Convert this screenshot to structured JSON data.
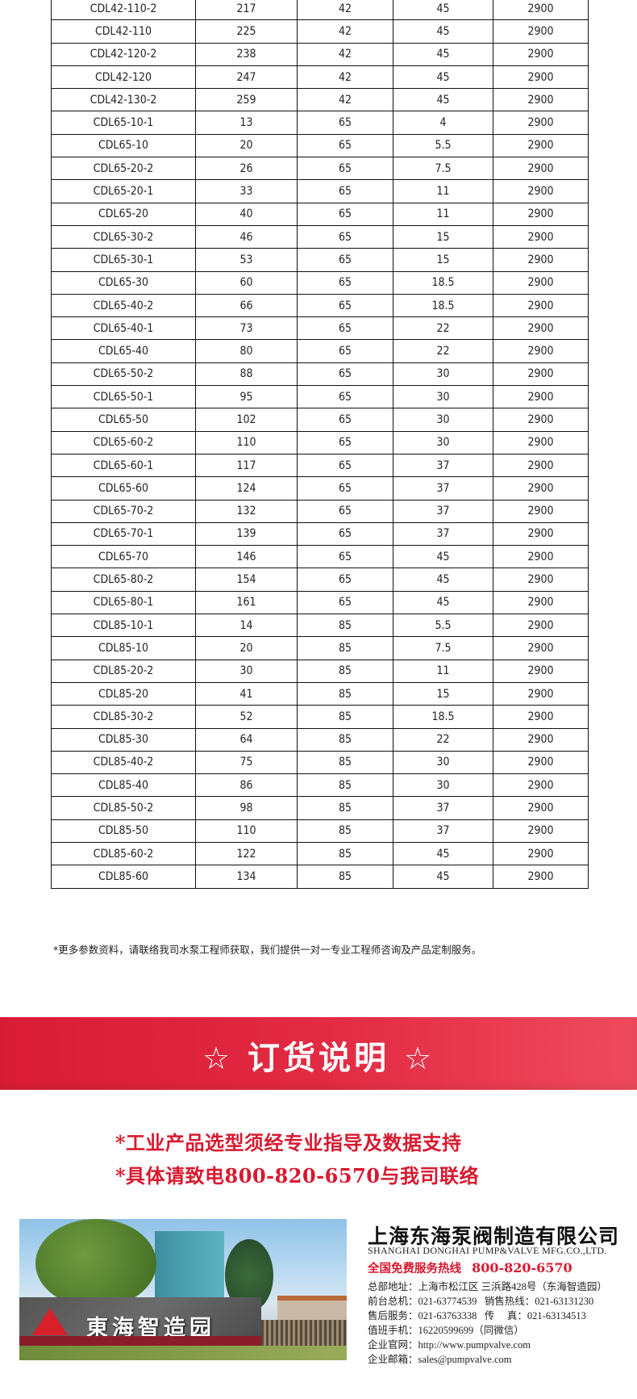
{
  "table": {
    "rows": [
      [
        "CDL42-110-2",
        "217",
        "42",
        "45",
        "2900"
      ],
      [
        "CDL42-110",
        "225",
        "42",
        "45",
        "2900"
      ],
      [
        "CDL42-120-2",
        "238",
        "42",
        "45",
        "2900"
      ],
      [
        "CDL42-120",
        "247",
        "42",
        "45",
        "2900"
      ],
      [
        "CDL42-130-2",
        "259",
        "42",
        "45",
        "2900"
      ],
      [
        "CDL65-10-1",
        "13",
        "65",
        "4",
        "2900"
      ],
      [
        "CDL65-10",
        "20",
        "65",
        "5.5",
        "2900"
      ],
      [
        "CDL65-20-2",
        "26",
        "65",
        "7.5",
        "2900"
      ],
      [
        "CDL65-20-1",
        "33",
        "65",
        "11",
        "2900"
      ],
      [
        "CDL65-20",
        "40",
        "65",
        "11",
        "2900"
      ],
      [
        "CDL65-30-2",
        "46",
        "65",
        "15",
        "2900"
      ],
      [
        "CDL65-30-1",
        "53",
        "65",
        "15",
        "2900"
      ],
      [
        "CDL65-30",
        "60",
        "65",
        "18.5",
        "2900"
      ],
      [
        "CDL65-40-2",
        "66",
        "65",
        "18.5",
        "2900"
      ],
      [
        "CDL65-40-1",
        "73",
        "65",
        "22",
        "2900"
      ],
      [
        "CDL65-40",
        "80",
        "65",
        "22",
        "2900"
      ],
      [
        "CDL65-50-2",
        "88",
        "65",
        "30",
        "2900"
      ],
      [
        "CDL65-50-1",
        "95",
        "65",
        "30",
        "2900"
      ],
      [
        "CDL65-50",
        "102",
        "65",
        "30",
        "2900"
      ],
      [
        "CDL65-60-2",
        "110",
        "65",
        "30",
        "2900"
      ],
      [
        "CDL65-60-1",
        "117",
        "65",
        "37",
        "2900"
      ],
      [
        "CDL65-60",
        "124",
        "65",
        "37",
        "2900"
      ],
      [
        "CDL65-70-2",
        "132",
        "65",
        "37",
        "2900"
      ],
      [
        "CDL65-70-1",
        "139",
        "65",
        "37",
        "2900"
      ],
      [
        "CDL65-70",
        "146",
        "65",
        "45",
        "2900"
      ],
      [
        "CDL65-80-2",
        "154",
        "65",
        "45",
        "2900"
      ],
      [
        "CDL65-80-1",
        "161",
        "65",
        "45",
        "2900"
      ],
      [
        "CDL85-10-1",
        "14",
        "85",
        "5.5",
        "2900"
      ],
      [
        "CDL85-10",
        "20",
        "85",
        "7.5",
        "2900"
      ],
      [
        "CDL85-20-2",
        "30",
        "85",
        "11",
        "2900"
      ],
      [
        "CDL85-20",
        "41",
        "85",
        "15",
        "2900"
      ],
      [
        "CDL85-30-2",
        "52",
        "85",
        "18.5",
        "2900"
      ],
      [
        "CDL85-30",
        "64",
        "85",
        "22",
        "2900"
      ],
      [
        "CDL85-40-2",
        "75",
        "85",
        "30",
        "2900"
      ],
      [
        "CDL85-40",
        "86",
        "85",
        "30",
        "2900"
      ],
      [
        "CDL85-50-2",
        "98",
        "85",
        "37",
        "2900"
      ],
      [
        "CDL85-50",
        "110",
        "85",
        "37",
        "2900"
      ],
      [
        "CDL85-60-2",
        "122",
        "85",
        "45",
        "2900"
      ],
      [
        "CDL85-60",
        "134",
        "85",
        "45",
        "2900"
      ]
    ]
  },
  "note": "*更多参数资料，请联络我司水泵工程师获取，我们提供一对一专业工程师咨询及产品定制服务。",
  "banner": {
    "star": "☆",
    "title": "订货说明",
    "color": "#e02a40"
  },
  "order_lines": [
    "*工业产品选型须经专业指导及数据支持",
    "*具体请致电800-820-6570与我司联络"
  ],
  "photo": {
    "sign_text": "東海智造园"
  },
  "company": {
    "name": "上海东海泵阀制造有限公司",
    "name_en": "SHANGHAI DONGHAI PUMP&VALVE MFG.CO.,LTD.",
    "hotline_label": "全国免费服务热线",
    "hotline": "800-820-6570",
    "lines": [
      "总部地址：上海市松江区 三浜路428号（东海智造园）",
      "前台总机：021-63774539   销售热线：021-63131230",
      "售后服务：021-63763338   传     真：021-63134513",
      "值班手机：16220599699（同微信）",
      "企业官网：http://www.pumpvalve.com",
      "企业邮箱：sales@pumpvalve.com"
    ]
  }
}
